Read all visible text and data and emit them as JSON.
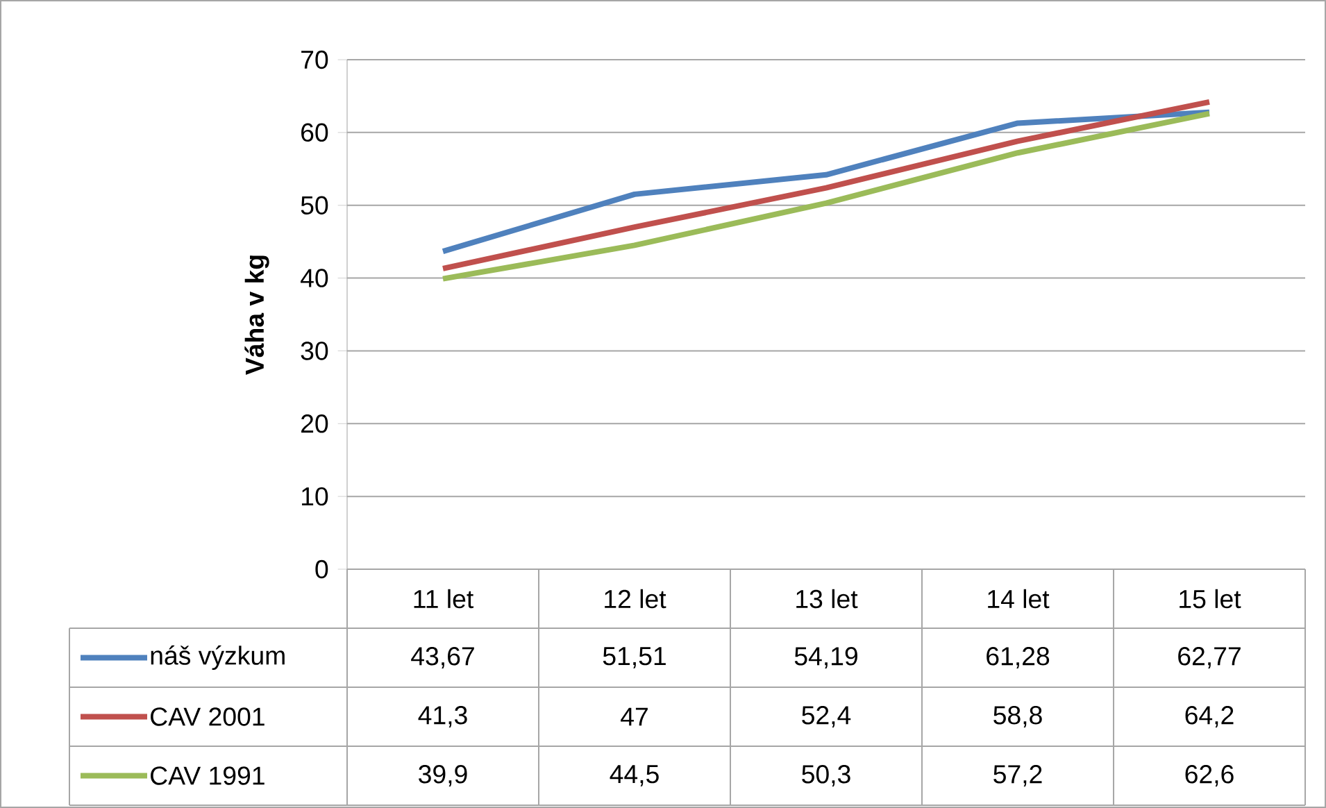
{
  "chart_data": {
    "type": "line",
    "ylabel": "Váha v kg",
    "categories": [
      "11 let",
      "12 let",
      "13 let",
      "14 let",
      "15 let"
    ],
    "ylim": [
      0,
      70
    ],
    "yticks": [
      0,
      10,
      20,
      30,
      40,
      50,
      60,
      70
    ],
    "grid": "y",
    "legend": "bottom",
    "series": [
      {
        "name": "náš výzkum",
        "color": "#4f81bd",
        "values": [
          43.67,
          51.51,
          54.19,
          61.28,
          62.77
        ],
        "value_labels": [
          "43,67",
          "51,51",
          "54,19",
          "61,28",
          "62,77"
        ]
      },
      {
        "name": "CAV 2001",
        "color": "#c0504d",
        "values": [
          41.3,
          47,
          52.4,
          58.8,
          64.2
        ],
        "value_labels": [
          "41,3",
          "47",
          "52,4",
          "58,8",
          "64,2"
        ]
      },
      {
        "name": "CAV 1991",
        "color": "#9bbb59",
        "values": [
          39.9,
          44.5,
          50.3,
          57.2,
          62.6
        ],
        "value_labels": [
          "39,9",
          "44,5",
          "50,3",
          "57,2",
          "62,6"
        ]
      }
    ]
  }
}
